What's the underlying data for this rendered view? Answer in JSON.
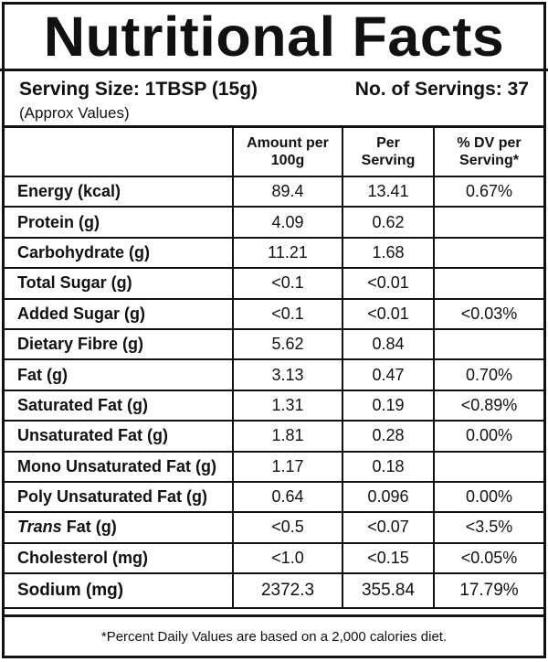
{
  "title": "Nutritional Facts",
  "serving": {
    "size": "Serving Size: 1TBSP (15g)",
    "servings": "No. of Servings: 37",
    "approx": "(Approx Values)"
  },
  "table": {
    "headers": [
      "",
      "Amount per 100g",
      "Per Serving",
      "% DV per Serving*"
    ],
    "rows": [
      {
        "pre": "",
        "name": "Energy (kcal)",
        "per100g": "89.4",
        "perServing": "13.41",
        "dv": "0.67%"
      },
      {
        "pre": "",
        "name": "Protein (g)",
        "per100g": "4.09",
        "perServing": "0.62",
        "dv": ""
      },
      {
        "pre": "",
        "name": "Carbohydrate (g)",
        "per100g": "11.21",
        "perServing": "1.68",
        "dv": ""
      },
      {
        "pre": "",
        "name": "Total Sugar (g)",
        "per100g": "<0.1",
        "perServing": "<0.01",
        "dv": ""
      },
      {
        "pre": "",
        "name": "Added Sugar (g)",
        "per100g": "<0.1",
        "perServing": "<0.01",
        "dv": "<0.03%"
      },
      {
        "pre": "",
        "name": "Dietary Fibre (g)",
        "per100g": "5.62",
        "perServing": "0.84",
        "dv": ""
      },
      {
        "pre": "",
        "name": "Fat (g)",
        "per100g": "3.13",
        "perServing": "0.47",
        "dv": "0.70%"
      },
      {
        "pre": "",
        "name": "Saturated Fat (g)",
        "per100g": "1.31",
        "perServing": "0.19",
        "dv": "<0.89%"
      },
      {
        "pre": "",
        "name": "Unsaturated Fat (g)",
        "per100g": "1.81",
        "perServing": "0.28",
        "dv": "0.00%"
      },
      {
        "pre": "",
        "name": "Mono Unsaturated Fat (g)",
        "per100g": "1.17",
        "perServing": "0.18",
        "dv": ""
      },
      {
        "pre": "",
        "name": "Poly Unsaturated Fat (g)",
        "per100g": "0.64",
        "perServing": "0.096",
        "dv": "0.00%"
      },
      {
        "pre": "Trans",
        "name": " Fat (g)",
        "per100g": "<0.5",
        "perServing": "<0.07",
        "dv": "<3.5%"
      },
      {
        "pre": "",
        "name": "Cholesterol (mg)",
        "per100g": "<1.0",
        "perServing": "<0.15",
        "dv": "<0.05%"
      },
      {
        "pre": "",
        "name": "Sodium (mg)",
        "per100g": "2372.3",
        "perServing": "355.84",
        "dv": "17.79%"
      }
    ]
  },
  "footer": "*Percent Daily Values are based on a 2,000 calories diet."
}
